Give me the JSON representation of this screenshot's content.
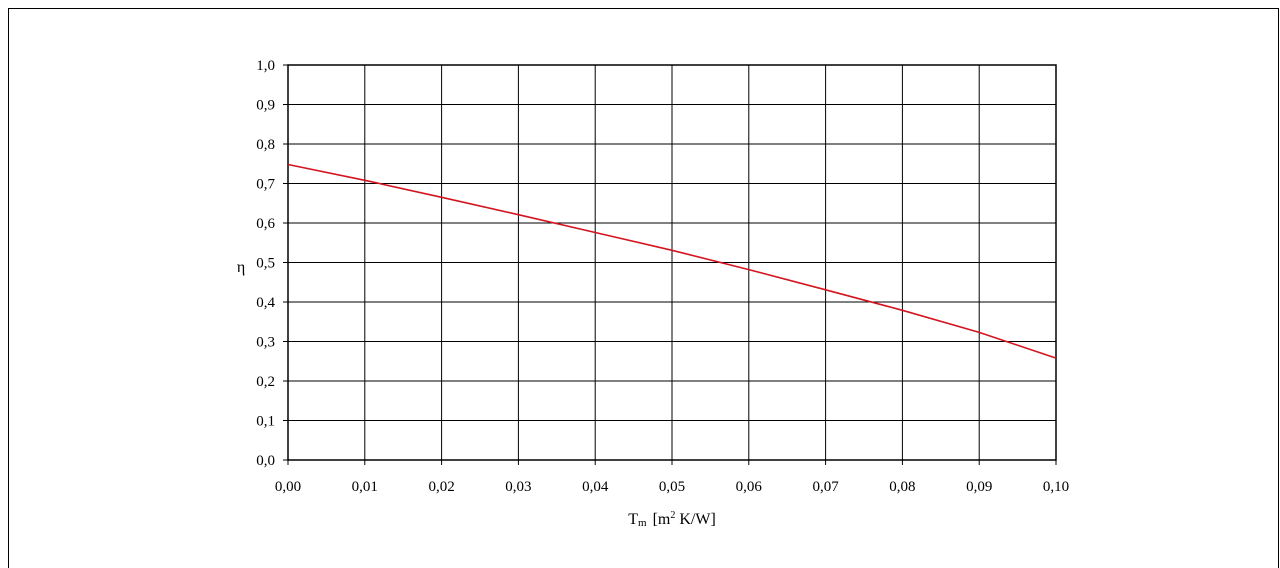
{
  "chart_data": {
    "type": "line",
    "title": "",
    "xlabel_main": "T",
    "xlabel_sub": "m",
    "xlabel_units_prefix": "[m",
    "xlabel_units_sup": "2",
    "xlabel_units_suffix": " K/W]",
    "ylabel": "η",
    "xlim": [
      0,
      0.1
    ],
    "ylim": [
      0,
      1.0
    ],
    "x_ticks": [
      0,
      0.01,
      0.02,
      0.03,
      0.04,
      0.05,
      0.06,
      0.07,
      0.08,
      0.09,
      0.1
    ],
    "x_tick_labels": [
      "0,00",
      "0,01",
      "0,02",
      "0,03",
      "0,04",
      "0,05",
      "0,06",
      "0,07",
      "0,08",
      "0,09",
      "0,10"
    ],
    "y_ticks": [
      0,
      0.1,
      0.2,
      0.3,
      0.4,
      0.5,
      0.6,
      0.7,
      0.8,
      0.9,
      1.0
    ],
    "y_tick_labels": [
      "0,0",
      "0,1",
      "0,2",
      "0,3",
      "0,4",
      "0,5",
      "0,6",
      "0,7",
      "0,8",
      "0,9",
      "1,0"
    ],
    "grid": true,
    "series": [
      {
        "color": "#d4141f",
        "x": [
          0,
          0.01,
          0.02,
          0.03,
          0.04,
          0.05,
          0.06,
          0.07,
          0.08,
          0.09,
          0.1
        ],
        "y": [
          0.748,
          0.708,
          0.665,
          0.621,
          0.576,
          0.531,
          0.482,
          0.431,
          0.379,
          0.323,
          0.258
        ]
      }
    ]
  }
}
